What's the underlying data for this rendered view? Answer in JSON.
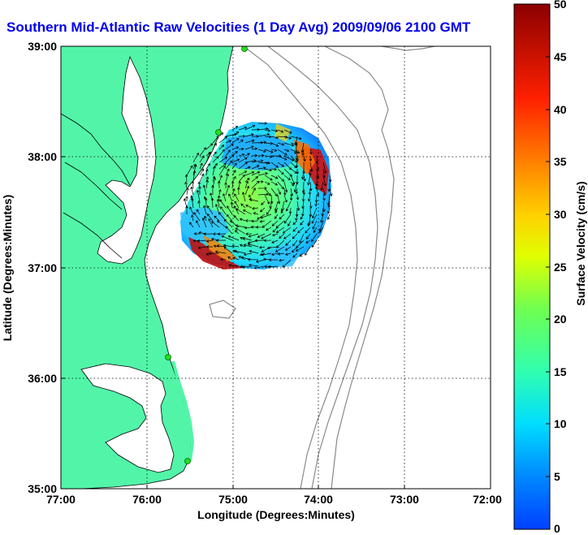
{
  "title": "Southern Mid-Atlantic Raw Velocities (1 Day Avg) 2009/09/06 2100 GMT",
  "xaxis": {
    "label": "Longitude (Degrees:Minutes)",
    "ticks": [
      "77:00",
      "76:00",
      "75:00",
      "74:00",
      "73:00",
      "72:00"
    ]
  },
  "yaxis": {
    "label": "Latitude (Degrees:Minutes)",
    "ticks": [
      "39:00",
      "38:00",
      "37:00",
      "36:00",
      "35:00"
    ]
  },
  "colorbar": {
    "label": "Surface Velocity (cm/s)",
    "ticks": [
      "50",
      "45",
      "40",
      "35",
      "30",
      "25",
      "20",
      "15",
      "10",
      "5",
      "0"
    ],
    "colors": [
      "#0040ff",
      "#00a0ff",
      "#00ffff",
      "#30ffa0",
      "#80ff40",
      "#ffff00",
      "#ffb000",
      "#ff6000",
      "#ff0000",
      "#a00000"
    ]
  },
  "colors": {
    "land": "#52f5a8",
    "coast": "#000000",
    "bathymetry": "#8a8a8a",
    "grid": "#000000",
    "stations": "#22dd22"
  }
}
